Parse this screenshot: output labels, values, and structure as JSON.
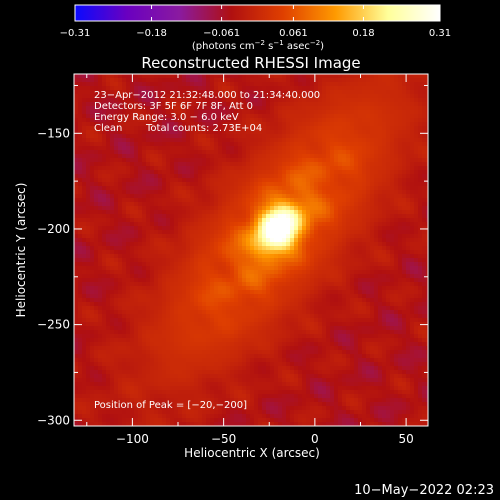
{
  "chart_data": {
    "type": "heatmap",
    "title": "Reconstructed RHESSI Image",
    "colorbar": {
      "min": -0.31,
      "max": 0.31,
      "tick_labels": [
        "−0.31",
        "−0.18",
        "−0.061",
        "0.061",
        "0.18",
        "0.31"
      ],
      "tick_values": [
        -0.31,
        -0.18,
        -0.061,
        0.061,
        0.18,
        0.31
      ],
      "units_prefix": "(photons cm",
      "units_exp1": "−2",
      "units_mid": " s",
      "units_exp2": "−1",
      "units_mid2": " asec",
      "units_exp3": "−2",
      "units_suffix": ")",
      "colormap_stops": [
        "#0a0aff",
        "#6a00c0",
        "#8a1aa0",
        "#b01010",
        "#e04000",
        "#ff9a00",
        "#ffff9a",
        "#ffffff"
      ]
    },
    "info": {
      "time_range": "23−Apr−2012 21:32:48.000 to 21:34:40.000",
      "detectors": "Detectors: 3F 5F 6F 7F 8F, Att 0",
      "energy": "Energy Range: 3.0 − 6.0 keV",
      "method": "Clean",
      "total_counts": "Total counts: 2.73E+04",
      "peak": "Position of Peak = [−20,−200]"
    },
    "peak": {
      "x": -20,
      "y": -200
    },
    "xlabel": "Heliocentric X (arcsec)",
    "ylabel": "Heliocentric Y (arcsec)",
    "xlim": [
      -132,
      62
    ],
    "ylim": [
      -303,
      -119
    ],
    "xticks": [
      -100,
      -50,
      0,
      50
    ],
    "xtick_labels": [
      "−100",
      "−50",
      "0",
      "50"
    ],
    "yticks": [
      -150,
      -200,
      -250,
      -300
    ],
    "ytick_labels": [
      "−150",
      "−200",
      "−250",
      "−300"
    ],
    "grid": false,
    "structure": {
      "source_strength": 0.3,
      "plume_strength": 0.1,
      "background_min": -0.08
    }
  },
  "footer": {
    "timestamp": "10−May−2022 02:23"
  }
}
